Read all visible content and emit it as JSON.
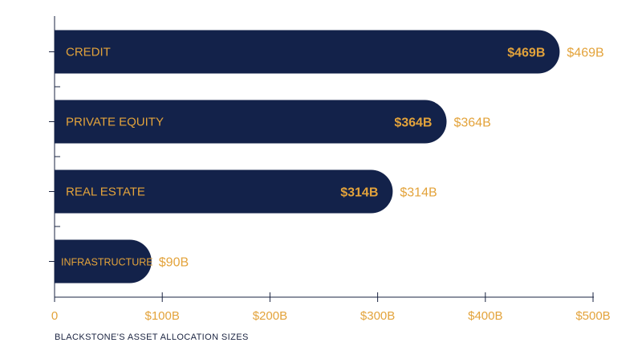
{
  "chart_data": {
    "type": "bar",
    "orientation": "horizontal",
    "categories": [
      "CREDIT",
      "PRIVATE EQUITY",
      "REAL ESTATE",
      "INFRASTRUCTURE"
    ],
    "values": [
      469,
      364,
      314,
      90
    ],
    "value_labels": [
      "$469B",
      "$364B",
      "$314B",
      "$90B"
    ],
    "xticks": [
      0,
      100,
      200,
      300,
      400,
      500
    ],
    "xtick_labels": [
      "0",
      "$100B",
      "$200B",
      "$300B",
      "$400B",
      "$500B"
    ],
    "xlim": [
      0,
      500
    ],
    "xlabel": "BLACKSTONE'S ASSET ALLOCATION SIZES",
    "grid": false,
    "legend": "none"
  },
  "colors": {
    "bar": "#13224a",
    "label": "#e3a33b",
    "axis": "#1a2340",
    "caption": "#1a2340"
  }
}
